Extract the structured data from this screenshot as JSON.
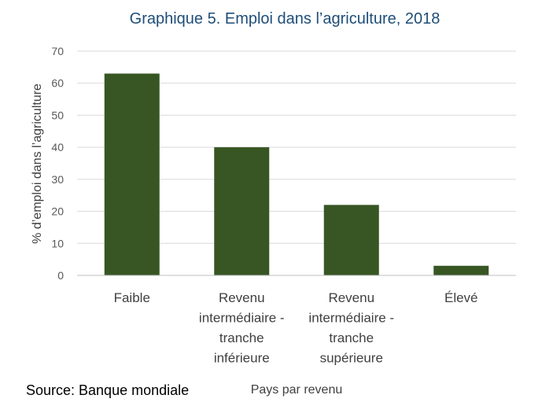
{
  "chart_data": {
    "type": "bar",
    "title": "Graphique 5. Emploi dans l’agriculture, 2018",
    "ylabel": "% d’emploi dans l’agriculture",
    "xlabel": "Pays par revenu",
    "ylim": [
      0,
      70
    ],
    "yticks": [
      0,
      10,
      20,
      30,
      40,
      50,
      60,
      70
    ],
    "grid": true,
    "categories": [
      [
        "Faible"
      ],
      [
        "Revenu",
        "intermédiaire -",
        "tranche",
        "inférieure"
      ],
      [
        "Revenu",
        "intermédiaire -",
        "tranche",
        "supérieure"
      ],
      [
        "Élevé"
      ]
    ],
    "values": [
      63,
      40,
      22,
      3
    ],
    "bar_color": "#375623"
  },
  "source": "Source: Banque mondiale"
}
